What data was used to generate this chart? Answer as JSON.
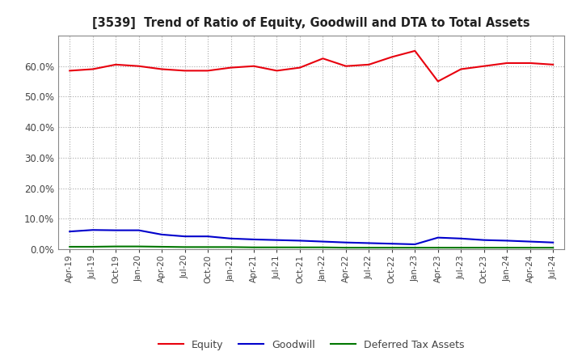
{
  "title": "[3539]  Trend of Ratio of Equity, Goodwill and DTA to Total Assets",
  "x_labels": [
    "Apr-19",
    "Jul-19",
    "Oct-19",
    "Jan-20",
    "Apr-20",
    "Jul-20",
    "Oct-20",
    "Jan-21",
    "Apr-21",
    "Jul-21",
    "Oct-21",
    "Jan-22",
    "Apr-22",
    "Jul-22",
    "Oct-22",
    "Jan-23",
    "Apr-23",
    "Jul-23",
    "Oct-23",
    "Jan-24",
    "Apr-24",
    "Jul-24"
  ],
  "equity": [
    58.5,
    59.0,
    60.5,
    60.0,
    59.0,
    58.5,
    58.5,
    59.5,
    60.0,
    58.5,
    59.5,
    62.5,
    60.0,
    60.5,
    63.0,
    65.0,
    55.0,
    59.0,
    60.0,
    61.0,
    61.0,
    60.5
  ],
  "goodwill": [
    5.8,
    6.3,
    6.2,
    6.2,
    4.8,
    4.2,
    4.2,
    3.5,
    3.2,
    3.0,
    2.8,
    2.5,
    2.2,
    2.0,
    1.8,
    1.6,
    3.8,
    3.5,
    3.0,
    2.8,
    2.5,
    2.2
  ],
  "dta": [
    0.8,
    0.8,
    0.9,
    0.9,
    0.8,
    0.7,
    0.7,
    0.7,
    0.6,
    0.6,
    0.6,
    0.6,
    0.5,
    0.5,
    0.5,
    0.5,
    0.5,
    0.5,
    0.5,
    0.5,
    0.5,
    0.5
  ],
  "equity_color": "#e8000d",
  "goodwill_color": "#0000cc",
  "dta_color": "#007700",
  "background_color": "#ffffff",
  "grid_color": "#aaaaaa",
  "ylim": [
    0,
    70
  ],
  "yticks": [
    0,
    10,
    20,
    30,
    40,
    50,
    60
  ],
  "legend_labels": [
    "Equity",
    "Goodwill",
    "Deferred Tax Assets"
  ]
}
